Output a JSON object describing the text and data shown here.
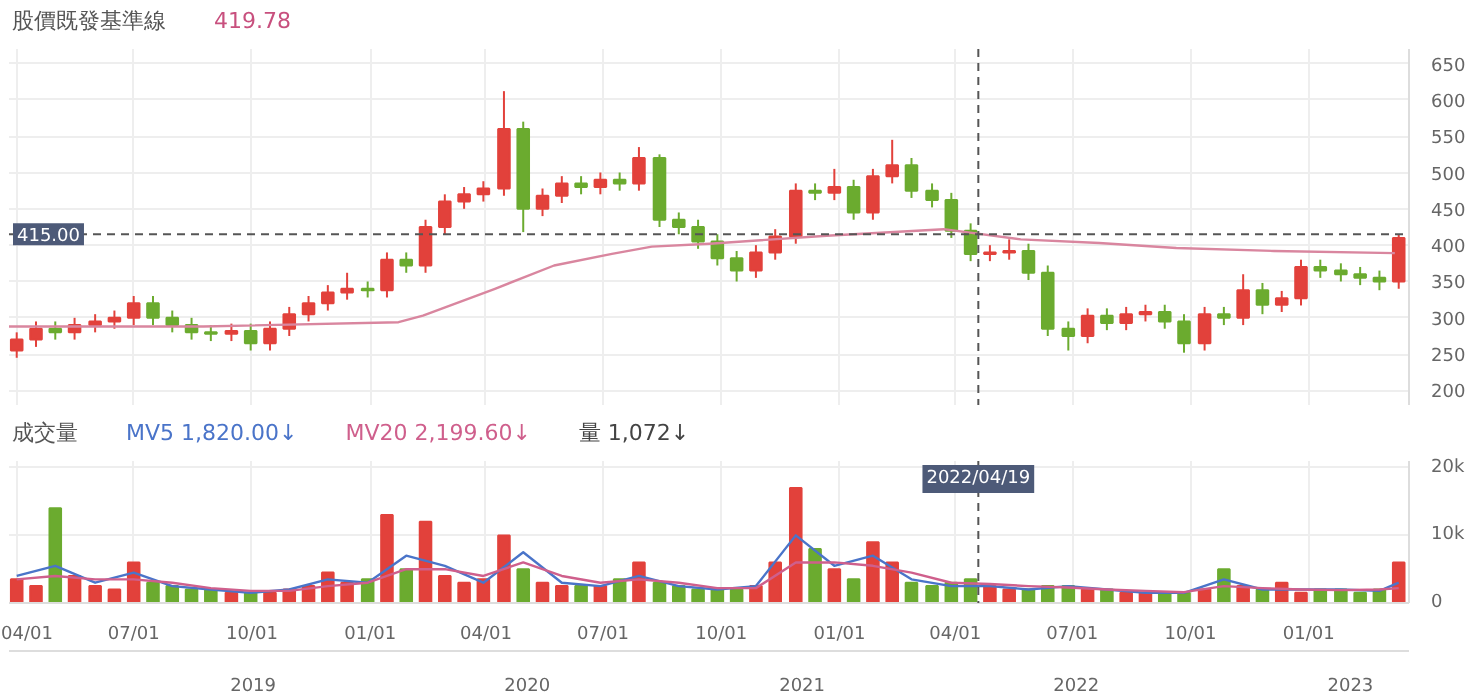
{
  "chart_data": [
    {
      "type": "candlestick",
      "title": "股價既發基準線",
      "subtitle": "419.78",
      "x": [
        "2020-04-01",
        "2020-04-16",
        "2020-05-01",
        "2020-05-16",
        "2020-06-01",
        "2020-06-16",
        "2020-07-01",
        "2020-07-16",
        "2020-07-31",
        "2020-08-15",
        "2020-08-30",
        "2020-09-15",
        "2020-09-30",
        "2020-10-15",
        "2020-10-30",
        "2020-11-14",
        "2020-11-29",
        "2020-12-14",
        "2020-12-30",
        "2021-01-14",
        "2021-01-29",
        "2021-02-13",
        "2021-02-28",
        "2021-03-15",
        "2021-03-30",
        "2021-04-15",
        "2021-04-30",
        "2021-05-15",
        "2021-05-30",
        "2021-06-14",
        "2021-06-29",
        "2021-07-14",
        "2021-07-29",
        "2021-08-14",
        "2021-08-29",
        "2021-09-13",
        "2021-09-28",
        "2021-10-13",
        "2021-10-28",
        "2021-11-12",
        "2021-11-28",
        "2021-12-13",
        "2021-12-28",
        "2022-01-12",
        "2022-01-27",
        "2022-02-11",
        "2022-02-26",
        "2022-03-14",
        "2022-03-29",
        "2022-04-13",
        "2022-04-28",
        "2022-05-13",
        "2022-05-28",
        "2022-06-12",
        "2022-06-28",
        "2022-07-13",
        "2022-07-28",
        "2022-08-12",
        "2022-08-27",
        "2022-09-11",
        "2022-09-26",
        "2022-10-12",
        "2022-10-27",
        "2022-11-11",
        "2022-11-26",
        "2022-12-11",
        "2022-12-26",
        "2023-01-10",
        "2023-01-26",
        "2023-02-10",
        "2023-02-25",
        "2023-03-12"
      ],
      "ohlc": [
        [
          255,
          280,
          245,
          270
        ],
        [
          270,
          295,
          260,
          285
        ],
        [
          285,
          295,
          270,
          280
        ],
        [
          280,
          300,
          270,
          290
        ],
        [
          290,
          305,
          280,
          295
        ],
        [
          295,
          310,
          285,
          300
        ],
        [
          300,
          330,
          290,
          320
        ],
        [
          320,
          330,
          290,
          300
        ],
        [
          300,
          310,
          280,
          290
        ],
        [
          290,
          300,
          270,
          280
        ],
        [
          280,
          290,
          268,
          278
        ],
        [
          278,
          292,
          268,
          282
        ],
        [
          282,
          292,
          255,
          265
        ],
        [
          265,
          295,
          255,
          285
        ],
        [
          285,
          315,
          275,
          305
        ],
        [
          305,
          330,
          295,
          320
        ],
        [
          320,
          345,
          310,
          335
        ],
        [
          335,
          362,
          325,
          340
        ],
        [
          340,
          350,
          328,
          338
        ],
        [
          338,
          390,
          328,
          380
        ],
        [
          380,
          390,
          362,
          372
        ],
        [
          372,
          435,
          362,
          425
        ],
        [
          425,
          470,
          415,
          460
        ],
        [
          460,
          480,
          450,
          470
        ],
        [
          470,
          488,
          460,
          478
        ],
        [
          478,
          612,
          468,
          560
        ],
        [
          560,
          570,
          418,
          450
        ],
        [
          450,
          478,
          440,
          468
        ],
        [
          468,
          495,
          458,
          485
        ],
        [
          485,
          495,
          470,
          480
        ],
        [
          480,
          500,
          470,
          490
        ],
        [
          490,
          500,
          475,
          485
        ],
        [
          485,
          535,
          475,
          520
        ],
        [
          520,
          525,
          425,
          435
        ],
        [
          435,
          445,
          415,
          425
        ],
        [
          425,
          435,
          395,
          405
        ],
        [
          405,
          415,
          372,
          382
        ],
        [
          382,
          392,
          350,
          365
        ],
        [
          365,
          400,
          355,
          390
        ],
        [
          390,
          422,
          380,
          412
        ],
        [
          412,
          485,
          402,
          475
        ],
        [
          475,
          485,
          462,
          472
        ],
        [
          472,
          505,
          462,
          480
        ],
        [
          480,
          490,
          435,
          445
        ],
        [
          445,
          505,
          435,
          495
        ],
        [
          495,
          545,
          485,
          510
        ],
        [
          510,
          520,
          465,
          475
        ],
        [
          475,
          485,
          452,
          462
        ],
        [
          462,
          472,
          410,
          420
        ],
        [
          420,
          430,
          378,
          388
        ],
        [
          388,
          400,
          378,
          390
        ],
        [
          390,
          408,
          380,
          392
        ],
        [
          392,
          402,
          352,
          362
        ],
        [
          362,
          372,
          275,
          285
        ],
        [
          285,
          295,
          255,
          275
        ],
        [
          275,
          313,
          265,
          303
        ],
        [
          303,
          313,
          283,
          293
        ],
        [
          293,
          315,
          283,
          305
        ],
        [
          305,
          318,
          295,
          308
        ],
        [
          308,
          318,
          285,
          295
        ],
        [
          295,
          305,
          252,
          265
        ],
        [
          265,
          315,
          255,
          305
        ],
        [
          305,
          315,
          290,
          300
        ],
        [
          300,
          360,
          290,
          338
        ],
        [
          338,
          348,
          305,
          318
        ],
        [
          318,
          337,
          308,
          327
        ],
        [
          327,
          380,
          317,
          370
        ],
        [
          370,
          380,
          355,
          365
        ],
        [
          365,
          375,
          350,
          360
        ],
        [
          360,
          370,
          345,
          355
        ],
        [
          355,
          365,
          338,
          350
        ],
        [
          350,
          415,
          340,
          410
        ]
      ],
      "colors": [
        "#e2413b",
        "#e2413b",
        "#6bab2f",
        "#e2413b",
        "#e2413b",
        "#e2413b",
        "#e2413b",
        "#6bab2f",
        "#6bab2f",
        "#6bab2f",
        "#6bab2f",
        "#e2413b",
        "#6bab2f",
        "#e2413b",
        "#e2413b",
        "#e2413b",
        "#e2413b",
        "#e2413b",
        "#6bab2f",
        "#e2413b",
        "#6bab2f",
        "#e2413b",
        "#e2413b",
        "#e2413b",
        "#e2413b",
        "#e2413b",
        "#6bab2f",
        "#e2413b",
        "#e2413b",
        "#6bab2f",
        "#e2413b",
        "#6bab2f",
        "#e2413b",
        "#6bab2f",
        "#6bab2f",
        "#6bab2f",
        "#6bab2f",
        "#6bab2f",
        "#e2413b",
        "#e2413b",
        "#e2413b",
        "#6bab2f",
        "#e2413b",
        "#6bab2f",
        "#e2413b",
        "#e2413b",
        "#6bab2f",
        "#6bab2f",
        "#6bab2f",
        "#6bab2f",
        "#e2413b",
        "#e2413b",
        "#6bab2f",
        "#6bab2f",
        "#6bab2f",
        "#e2413b",
        "#6bab2f",
        "#e2413b",
        "#e2413b",
        "#6bab2f",
        "#6bab2f",
        "#e2413b",
        "#6bab2f",
        "#e2413b",
        "#6bab2f",
        "#e2413b",
        "#e2413b",
        "#6bab2f",
        "#6bab2f",
        "#6bab2f",
        "#6bab2f",
        "#e2413b"
      ],
      "series": [
        {
          "type": "line",
          "color": "#d9869f",
          "x": [
            "2020-03-26",
            "2020-08-24",
            "2021-01-23",
            "2021-02-11",
            "2021-04-08",
            "2021-05-24",
            "2021-07-08",
            "2021-08-08",
            "2021-09-22",
            "2021-12-22",
            "2022-03-23",
            "2022-05-22",
            "2022-07-22",
            "2022-09-20",
            "2022-12-05",
            "2023-03-09"
          ],
          "values": [
            288,
            288,
            294,
            303,
            340,
            372,
            388,
            398,
            402,
            413,
            422,
            408,
            403,
            396,
            392,
            389
          ]
        }
      ],
      "xlim": [
        "2020-03-26",
        "2023-03-20"
      ],
      "ylim": [
        180,
        670
      ],
      "xticks": [
        {
          "value": "2020-04-01",
          "label": null
        },
        {
          "value": "2020-07-01",
          "label": null
        },
        {
          "value": "2020-10-01",
          "label": null
        },
        {
          "value": "2021-01-01",
          "label": null
        },
        {
          "value": "2021-04-01",
          "label": null
        },
        {
          "value": "2021-07-01",
          "label": null
        },
        {
          "value": "2021-10-01",
          "label": null
        },
        {
          "value": "2022-01-01",
          "label": null
        },
        {
          "value": "2022-04-01",
          "label": null
        },
        {
          "value": "2022-07-01",
          "label": null
        },
        {
          "value": "2022-10-01",
          "label": null
        },
        {
          "value": "2023-01-01",
          "label": null
        }
      ],
      "yticks": [
        200,
        250,
        300,
        350,
        400,
        450,
        500,
        550,
        600,
        650
      ],
      "tick_labels": "y",
      "grid": true,
      "ref_lines": [
        {
          "axis": "y",
          "value": 415,
          "label": "415.00",
          "line_style": "dashed",
          "color": "#555555"
        },
        {
          "axis": "x",
          "value": "2022-04-19",
          "label": null,
          "line_style": "dashed",
          "color": "#555555"
        }
      ]
    },
    {
      "type": "bar",
      "title": "成交量",
      "x": [
        "2020-04-01",
        "2020-04-16",
        "2020-05-01",
        "2020-05-16",
        "2020-06-01",
        "2020-06-16",
        "2020-07-01",
        "2020-07-16",
        "2020-07-31",
        "2020-08-15",
        "2020-08-30",
        "2020-09-15",
        "2020-09-30",
        "2020-10-15",
        "2020-10-30",
        "2020-11-14",
        "2020-11-29",
        "2020-12-14",
        "2020-12-30",
        "2021-01-14",
        "2021-01-29",
        "2021-02-13",
        "2021-02-28",
        "2021-03-15",
        "2021-03-30",
        "2021-04-15",
        "2021-04-30",
        "2021-05-15",
        "2021-05-30",
        "2021-06-14",
        "2021-06-29",
        "2021-07-14",
        "2021-07-29",
        "2021-08-14",
        "2021-08-29",
        "2021-09-13",
        "2021-09-28",
        "2021-10-13",
        "2021-10-28",
        "2021-11-12",
        "2021-11-28",
        "2021-12-13",
        "2021-12-28",
        "2022-01-12",
        "2022-01-27",
        "2022-02-11",
        "2022-02-26",
        "2022-03-14",
        "2022-03-29",
        "2022-04-13",
        "2022-04-28",
        "2022-05-13",
        "2022-05-28",
        "2022-06-12",
        "2022-06-28",
        "2022-07-13",
        "2022-07-28",
        "2022-08-12",
        "2022-08-27",
        "2022-09-11",
        "2022-09-26",
        "2022-10-12",
        "2022-10-27",
        "2022-11-11",
        "2022-11-26",
        "2022-12-11",
        "2022-12-26",
        "2023-01-10",
        "2023-01-26",
        "2023-02-10",
        "2023-02-25",
        "2023-03-12"
      ],
      "values": [
        3500,
        2500,
        14000,
        4000,
        2500,
        2000,
        6000,
        3000,
        2500,
        2000,
        2000,
        1500,
        1500,
        1500,
        2000,
        2500,
        4500,
        3000,
        3500,
        13000,
        5000,
        12000,
        4000,
        3000,
        3500,
        10000,
        5000,
        3000,
        2500,
        2500,
        2500,
        3500,
        6000,
        3000,
        2500,
        2000,
        2000,
        2000,
        2500,
        6000,
        17000,
        8000,
        5000,
        3500,
        9000,
        6000,
        3000,
        2500,
        3000,
        3500,
        2500,
        2000,
        2000,
        2500,
        2500,
        2000,
        2000,
        1500,
        1500,
        1500,
        1500,
        2000,
        5000,
        2500,
        2000,
        3000,
        1500,
        2000,
        2000,
        1500,
        2000,
        6000
      ],
      "colors": [
        "#e2413b",
        "#e2413b",
        "#6bab2f",
        "#e2413b",
        "#e2413b",
        "#e2413b",
        "#e2413b",
        "#6bab2f",
        "#6bab2f",
        "#6bab2f",
        "#6bab2f",
        "#e2413b",
        "#6bab2f",
        "#e2413b",
        "#e2413b",
        "#e2413b",
        "#e2413b",
        "#e2413b",
        "#6bab2f",
        "#e2413b",
        "#6bab2f",
        "#e2413b",
        "#e2413b",
        "#e2413b",
        "#e2413b",
        "#e2413b",
        "#6bab2f",
        "#e2413b",
        "#e2413b",
        "#6bab2f",
        "#e2413b",
        "#6bab2f",
        "#e2413b",
        "#6bab2f",
        "#6bab2f",
        "#6bab2f",
        "#6bab2f",
        "#6bab2f",
        "#e2413b",
        "#e2413b",
        "#e2413b",
        "#6bab2f",
        "#e2413b",
        "#6bab2f",
        "#e2413b",
        "#e2413b",
        "#6bab2f",
        "#6bab2f",
        "#6bab2f",
        "#6bab2f",
        "#e2413b",
        "#e2413b",
        "#6bab2f",
        "#6bab2f",
        "#6bab2f",
        "#e2413b",
        "#6bab2f",
        "#e2413b",
        "#e2413b",
        "#6bab2f",
        "#6bab2f",
        "#e2413b",
        "#6bab2f",
        "#e2413b",
        "#6bab2f",
        "#e2413b",
        "#e2413b",
        "#6bab2f",
        "#6bab2f",
        "#6bab2f",
        "#6bab2f",
        "#e2413b"
      ],
      "series": [
        {
          "name": "MV5",
          "type": "line",
          "color": "#4a74c9",
          "x": [
            "2020-04-01",
            "2020-05-01",
            "2020-06-01",
            "2020-07-01",
            "2020-07-31",
            "2020-08-30",
            "2020-09-30",
            "2020-10-30",
            "2020-11-29",
            "2020-12-30",
            "2021-01-29",
            "2021-02-28",
            "2021-03-30",
            "2021-04-30",
            "2021-05-30",
            "2021-06-29",
            "2021-07-29",
            "2021-08-29",
            "2021-09-28",
            "2021-10-28",
            "2021-11-28",
            "2021-12-28",
            "2022-01-27",
            "2022-02-26",
            "2022-03-29",
            "2022-04-28",
            "2022-05-28",
            "2022-06-28",
            "2022-07-28",
            "2022-08-27",
            "2022-09-26",
            "2022-10-27",
            "2022-11-26",
            "2022-12-26",
            "2023-01-26",
            "2023-02-25",
            "2023-03-12"
          ],
          "values": [
            4000,
            5500,
            3000,
            4500,
            2500,
            2000,
            1500,
            2000,
            3500,
            3000,
            7000,
            5500,
            3000,
            7500,
            3000,
            2500,
            4000,
            2500,
            2000,
            2500,
            10000,
            5500,
            7000,
            3500,
            2500,
            2500,
            2000,
            2500,
            2000,
            1500,
            1500,
            3500,
            2000,
            2000,
            2000,
            1800,
            3000
          ]
        },
        {
          "name": "MV20",
          "type": "line",
          "color": "#cf5f8c",
          "x": [
            "2020-04-01",
            "2020-05-01",
            "2020-06-01",
            "2020-07-01",
            "2020-07-31",
            "2020-08-30",
            "2020-09-30",
            "2020-10-30",
            "2020-11-29",
            "2020-12-30",
            "2021-01-29",
            "2021-02-28",
            "2021-03-30",
            "2021-04-30",
            "2021-05-30",
            "2021-06-29",
            "2021-07-29",
            "2021-08-29",
            "2021-09-28",
            "2021-10-28",
            "2021-11-28",
            "2021-12-28",
            "2022-01-27",
            "2022-02-26",
            "2022-03-29",
            "2022-04-28",
            "2022-05-28",
            "2022-06-28",
            "2022-07-28",
            "2022-08-27",
            "2022-09-26",
            "2022-10-27",
            "2022-11-26",
            "2022-12-26",
            "2023-01-26",
            "2023-02-25",
            "2023-03-12"
          ],
          "values": [
            3500,
            4000,
            3500,
            3500,
            3000,
            2200,
            1800,
            1800,
            2500,
            3000,
            5000,
            5000,
            4000,
            6000,
            4000,
            3000,
            3500,
            3000,
            2200,
            2200,
            6000,
            6000,
            5500,
            4500,
            3000,
            2800,
            2500,
            2300,
            2000,
            1800,
            1600,
            2500,
            2200,
            2000,
            1900,
            2000,
            2200
          ]
        }
      ],
      "annotations": [
        "1,820.00↓",
        "2,199.60↓",
        "量 1,072↓"
      ],
      "xlim": [
        "2020-03-26",
        "2023-03-20"
      ],
      "ylim": [
        0,
        21000
      ],
      "xticks": [
        {
          "value": "2020-04-01",
          "label": "04/01"
        },
        {
          "value": "2020-07-01",
          "label": "07/01"
        },
        {
          "value": "2020-10-01",
          "label": "10/01"
        },
        {
          "value": "2021-01-01",
          "label": "01/01"
        },
        {
          "value": "2021-04-01",
          "label": "04/01"
        },
        {
          "value": "2021-07-01",
          "label": "07/01"
        },
        {
          "value": "2021-10-01",
          "label": "10/01"
        },
        {
          "value": "2022-01-01",
          "label": "01/01"
        },
        {
          "value": "2022-04-01",
          "label": "04/01"
        },
        {
          "value": "2022-07-01",
          "label": "07/01"
        },
        {
          "value": "2022-10-01",
          "label": "10/01"
        },
        {
          "value": "2023-01-01",
          "label": "01/01"
        }
      ],
      "yticks": [
        0,
        {
          "value": 10000,
          "label": "10k"
        },
        {
          "value": 20000,
          "label": "20k"
        }
      ],
      "grid": true,
      "ref_lines": [
        {
          "axis": "x",
          "value": "2022-04-19",
          "label": "2022/04/19",
          "line_style": "dashed",
          "color": "#555555"
        }
      ],
      "x2lim": [
        "2018-02-10",
        "2023-03-20"
      ],
      "x2ticks": [
        {
          "value": "2019-01-01",
          "label": "2019"
        },
        {
          "value": "2020-01-01",
          "label": "2020"
        },
        {
          "value": "2021-01-01",
          "label": "2021"
        },
        {
          "value": "2022-01-01",
          "label": "2022"
        },
        {
          "value": "2023-01-01",
          "label": "2023"
        }
      ]
    }
  ]
}
